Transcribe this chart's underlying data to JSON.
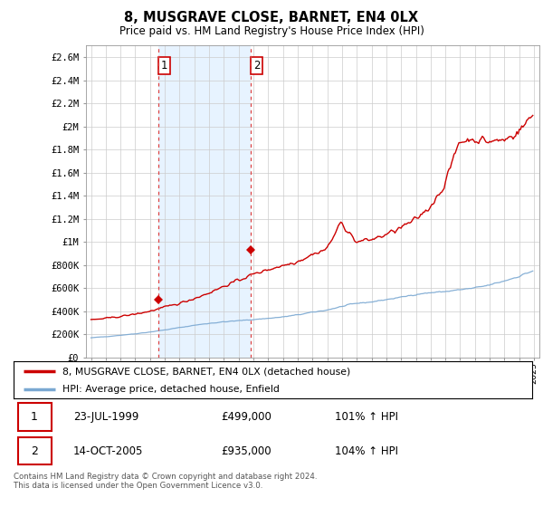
{
  "title": "8, MUSGRAVE CLOSE, BARNET, EN4 0LX",
  "subtitle": "Price paid vs. HM Land Registry's House Price Index (HPI)",
  "ylim": [
    0,
    2700000
  ],
  "yticks": [
    0,
    200000,
    400000,
    600000,
    800000,
    1000000,
    1200000,
    1400000,
    1600000,
    1800000,
    2000000,
    2200000,
    2400000,
    2600000
  ],
  "ytick_labels": [
    "£0",
    "£200K",
    "£400K",
    "£600K",
    "£800K",
    "£1M",
    "£1.2M",
    "£1.4M",
    "£1.6M",
    "£1.8M",
    "£2M",
    "£2.2M",
    "£2.4M",
    "£2.6M"
  ],
  "line1_color": "#cc0000",
  "line2_color": "#7aa8d2",
  "background_color": "#ffffff",
  "grid_color": "#cccccc",
  "shade_color": "#ddeeff",
  "sale1_x": 1999.55,
  "sale1_price": 499000,
  "sale2_x": 2005.79,
  "sale2_price": 935000,
  "vline_color": "#dd4444",
  "legend_line1": "8, MUSGRAVE CLOSE, BARNET, EN4 0LX (detached house)",
  "legend_line2": "HPI: Average price, detached house, Enfield",
  "table_rows": [
    {
      "num": "1",
      "date": "23-JUL-1999",
      "price": "£499,000",
      "pct": "101% ↑ HPI"
    },
    {
      "num": "2",
      "date": "14-OCT-2005",
      "price": "£935,000",
      "pct": "104% ↑ HPI"
    }
  ],
  "footer": "Contains HM Land Registry data © Crown copyright and database right 2024.\nThis data is licensed under the Open Government Licence v3.0."
}
